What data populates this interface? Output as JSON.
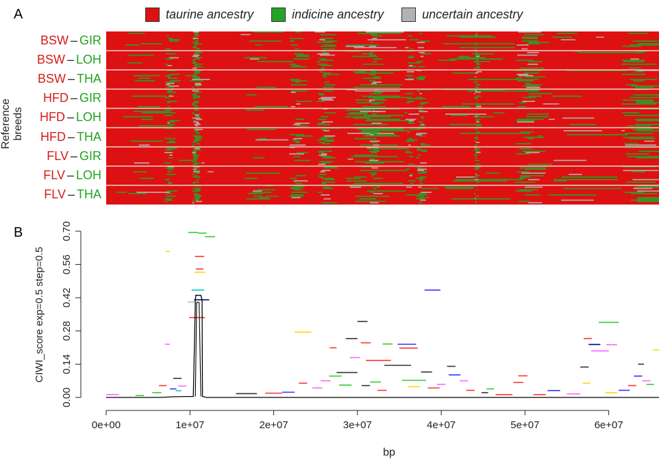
{
  "panel_a": {
    "letter": "A",
    "legend": [
      {
        "label": "taurine ancestry",
        "color": "#dd1111"
      },
      {
        "label": "indicine ancestry",
        "color": "#26a326"
      },
      {
        "label": "uncertain ancestry",
        "color": "#b3b3b3"
      }
    ],
    "ylabel": "Reference breeds",
    "rows": [
      {
        "a": "BSW",
        "dash": "–",
        "b": "GIR"
      },
      {
        "a": "BSW",
        "dash": "–",
        "b": "LOH"
      },
      {
        "a": "BSW",
        "dash": "–",
        "b": "THA"
      },
      {
        "a": "HFD",
        "dash": "–",
        "b": "GIR"
      },
      {
        "a": "HFD",
        "dash": "–",
        "b": "LOH"
      },
      {
        "a": "HFD",
        "dash": "–",
        "b": "THA"
      },
      {
        "a": "FLV",
        "dash": "–",
        "b": "GIR"
      },
      {
        "a": "FLV",
        "dash": "–",
        "b": "LOH"
      },
      {
        "a": "FLV",
        "dash": "–",
        "b": "THA"
      }
    ],
    "colors": {
      "taurine": "#dd1111",
      "indicine": "#26a326",
      "uncertain": "#b3b3b3",
      "separator": "#f2c8c8"
    }
  },
  "chart_data": {
    "type": "line",
    "panel_letter": "B",
    "xlabel": "bp",
    "ylabel": "CIWI_score exp=0.5 step=0.5",
    "xlim": [
      0,
      66000000
    ],
    "ylim": [
      0,
      0.7
    ],
    "x_ticks": [
      {
        "value": 0,
        "label": "0e+00"
      },
      {
        "value": 10000000,
        "label": "1e+07"
      },
      {
        "value": 20000000,
        "label": "2e+07"
      },
      {
        "value": 30000000,
        "label": "3e+07"
      },
      {
        "value": 40000000,
        "label": "4e+07"
      },
      {
        "value": 50000000,
        "label": "5e+07"
      },
      {
        "value": 60000000,
        "label": "6e+07"
      }
    ],
    "y_ticks": [
      {
        "value": 0,
        "label": "0.00"
      },
      {
        "value": 0.14,
        "label": "0.14"
      },
      {
        "value": 0.28,
        "label": "0.28"
      },
      {
        "value": 0.42,
        "label": "0.42"
      },
      {
        "value": 0.56,
        "label": "0.56"
      },
      {
        "value": 0.7,
        "label": "0.70"
      }
    ],
    "main_line": {
      "color": "#000000",
      "x": [
        0,
        6500000,
        8000000,
        9500000,
        10400000,
        10650000,
        10700000,
        11300000,
        11450000,
        11500000,
        12000000,
        16000000,
        20000000,
        24000000,
        28000000,
        32000000,
        36000000,
        40000000,
        44000000,
        48000000,
        52000000,
        56000000,
        60000000,
        64000000,
        66000000
      ],
      "y": [
        0,
        0,
        0.003,
        0.004,
        0.004,
        0.41,
        0.43,
        0.43,
        0.41,
        0.004,
        0,
        0,
        0,
        0,
        0,
        0,
        0,
        0,
        0,
        0,
        0,
        0,
        0,
        0,
        0
      ],
      "inner": {
        "x": [
          10650000,
          10800000,
          11100000,
          11300000
        ],
        "y": [
          0.004,
          0.4,
          0.4,
          0.004
        ]
      }
    },
    "segments": [
      {
        "x0": 9800000,
        "x1": 11000000,
        "y": 0.695,
        "color": "#33cc33"
      },
      {
        "x0": 11000000,
        "x1": 12000000,
        "y": 0.692,
        "color": "#33cc33"
      },
      {
        "x0": 11800000,
        "x1": 13000000,
        "y": 0.677,
        "color": "#33cc33"
      },
      {
        "x0": 7100000,
        "x1": 7600000,
        "y": 0.615,
        "color": "#ffd700"
      },
      {
        "x0": 10600000,
        "x1": 11700000,
        "y": 0.594,
        "color": "#ff3333"
      },
      {
        "x0": 10700000,
        "x1": 11600000,
        "y": 0.541,
        "color": "#ff3333"
      },
      {
        "x0": 10500000,
        "x1": 11800000,
        "y": 0.527,
        "color": "#ffd700"
      },
      {
        "x0": 10200000,
        "x1": 11700000,
        "y": 0.452,
        "color": "#00cccc"
      },
      {
        "x0": 10500000,
        "x1": 12300000,
        "y": 0.411,
        "color": "#000080"
      },
      {
        "x0": 9700000,
        "x1": 10700000,
        "y": 0.402,
        "color": "#bbbbbb"
      },
      {
        "x0": 9900000,
        "x1": 11800000,
        "y": 0.336,
        "color": "#ff3333"
      },
      {
        "x0": 7000000,
        "x1": 7600000,
        "y": 0.224,
        "color": "#ff66ff"
      },
      {
        "x0": 22500000,
        "x1": 24500000,
        "y": 0.275,
        "color": "#ffd700"
      },
      {
        "x0": 30000000,
        "x1": 31200000,
        "y": 0.32,
        "color": "#333333"
      },
      {
        "x0": 28600000,
        "x1": 30000000,
        "y": 0.248,
        "color": "#333333"
      },
      {
        "x0": 30400000,
        "x1": 31600000,
        "y": 0.23,
        "color": "#ff3333"
      },
      {
        "x0": 26700000,
        "x1": 27500000,
        "y": 0.209,
        "color": "#ff3333"
      },
      {
        "x0": 29100000,
        "x1": 30300000,
        "y": 0.168,
        "color": "#ff66ff"
      },
      {
        "x0": 31000000,
        "x1": 34000000,
        "y": 0.156,
        "color": "#ff3333"
      },
      {
        "x0": 34800000,
        "x1": 37000000,
        "y": 0.224,
        "color": "#3333ff"
      },
      {
        "x0": 33000000,
        "x1": 34200000,
        "y": 0.225,
        "color": "#33cc33"
      },
      {
        "x0": 35000000,
        "x1": 37200000,
        "y": 0.208,
        "color": "#ff3333"
      },
      {
        "x0": 38000000,
        "x1": 39900000,
        "y": 0.452,
        "color": "#3333ff"
      },
      {
        "x0": 33200000,
        "x1": 36400000,
        "y": 0.135,
        "color": "#333333"
      },
      {
        "x0": 27500000,
        "x1": 30000000,
        "y": 0.105,
        "color": "#333333"
      },
      {
        "x0": 26600000,
        "x1": 28100000,
        "y": 0.09,
        "color": "#33cc33"
      },
      {
        "x0": 35300000,
        "x1": 38200000,
        "y": 0.072,
        "color": "#33cc33"
      },
      {
        "x0": 37600000,
        "x1": 38900000,
        "y": 0.107,
        "color": "#333333"
      },
      {
        "x0": 40700000,
        "x1": 41700000,
        "y": 0.131,
        "color": "#333333"
      },
      {
        "x0": 40900000,
        "x1": 42300000,
        "y": 0.095,
        "color": "#3333ff"
      },
      {
        "x0": 49200000,
        "x1": 50300000,
        "y": 0.091,
        "color": "#ff3333"
      },
      {
        "x0": 48600000,
        "x1": 49800000,
        "y": 0.063,
        "color": "#ff3333"
      },
      {
        "x0": 52700000,
        "x1": 54200000,
        "y": 0.029,
        "color": "#3333ff"
      },
      {
        "x0": 45400000,
        "x1": 46300000,
        "y": 0.036,
        "color": "#33cc33"
      },
      {
        "x0": 57000000,
        "x1": 58000000,
        "y": 0.248,
        "color": "#ff3333"
      },
      {
        "x0": 57600000,
        "x1": 59000000,
        "y": 0.223,
        "color": "#000080"
      },
      {
        "x0": 57900000,
        "x1": 60000000,
        "y": 0.196,
        "color": "#ff66ff"
      },
      {
        "x0": 58800000,
        "x1": 61200000,
        "y": 0.316,
        "color": "#33cc33"
      },
      {
        "x0": 59700000,
        "x1": 61000000,
        "y": 0.222,
        "color": "#ff66ff"
      },
      {
        "x0": 56600000,
        "x1": 57600000,
        "y": 0.128,
        "color": "#333333"
      },
      {
        "x0": 56900000,
        "x1": 57800000,
        "y": 0.06,
        "color": "#ffd700"
      },
      {
        "x0": 63500000,
        "x1": 64200000,
        "y": 0.14,
        "color": "#333333"
      },
      {
        "x0": 65300000,
        "x1": 66000000,
        "y": 0.2,
        "color": "#ffd700"
      },
      {
        "x0": 63000000,
        "x1": 64000000,
        "y": 0.09,
        "color": "#3333ff"
      },
      {
        "x0": 64000000,
        "x1": 65000000,
        "y": 0.07,
        "color": "#ff66ff"
      },
      {
        "x0": 64500000,
        "x1": 65400000,
        "y": 0.055,
        "color": "#33cc33"
      },
      {
        "x0": 8000000,
        "x1": 9000000,
        "y": 0.08,
        "color": "#333333"
      },
      {
        "x0": 8600000,
        "x1": 9600000,
        "y": 0.048,
        "color": "#ff66ff"
      },
      {
        "x0": 8300000,
        "x1": 9000000,
        "y": 0.028,
        "color": "#00cccc"
      },
      {
        "x0": 7600000,
        "x1": 8400000,
        "y": 0.036,
        "color": "#3333ff"
      },
      {
        "x0": 0,
        "x1": 1500000,
        "y": 0.012,
        "color": "#ff66ff"
      },
      {
        "x0": 15500000,
        "x1": 18000000,
        "y": 0.016,
        "color": "#333333"
      },
      {
        "x0": 19000000,
        "x1": 21000000,
        "y": 0.018,
        "color": "#ff3333"
      },
      {
        "x0": 21000000,
        "x1": 22500000,
        "y": 0.022,
        "color": "#3333ff"
      },
      {
        "x0": 23000000,
        "x1": 24000000,
        "y": 0.06,
        "color": "#ff3333"
      },
      {
        "x0": 24600000,
        "x1": 25800000,
        "y": 0.04,
        "color": "#ff66ff"
      },
      {
        "x0": 25600000,
        "x1": 26800000,
        "y": 0.07,
        "color": "#ff66ff"
      },
      {
        "x0": 27800000,
        "x1": 29300000,
        "y": 0.052,
        "color": "#33cc33"
      },
      {
        "x0": 30500000,
        "x1": 31500000,
        "y": 0.05,
        "color": "#333333"
      },
      {
        "x0": 31500000,
        "x1": 32800000,
        "y": 0.065,
        "color": "#33cc33"
      },
      {
        "x0": 32400000,
        "x1": 33500000,
        "y": 0.03,
        "color": "#ff3333"
      },
      {
        "x0": 36000000,
        "x1": 37500000,
        "y": 0.045,
        "color": "#ffd700"
      },
      {
        "x0": 38400000,
        "x1": 39800000,
        "y": 0.04,
        "color": "#ff3333"
      },
      {
        "x0": 39500000,
        "x1": 40500000,
        "y": 0.055,
        "color": "#ff66ff"
      },
      {
        "x0": 42200000,
        "x1": 43200000,
        "y": 0.07,
        "color": "#ff66ff"
      },
      {
        "x0": 43000000,
        "x1": 44000000,
        "y": 0.03,
        "color": "#ff3333"
      },
      {
        "x0": 44800000,
        "x1": 45600000,
        "y": 0.02,
        "color": "#333333"
      },
      {
        "x0": 46500000,
        "x1": 48500000,
        "y": 0.012,
        "color": "#ff3333"
      },
      {
        "x0": 51000000,
        "x1": 52500000,
        "y": 0.012,
        "color": "#ff3333"
      },
      {
        "x0": 55000000,
        "x1": 56600000,
        "y": 0.015,
        "color": "#ff66ff"
      },
      {
        "x0": 59600000,
        "x1": 61000000,
        "y": 0.02,
        "color": "#ffd700"
      },
      {
        "x0": 61200000,
        "x1": 62500000,
        "y": 0.03,
        "color": "#3333ff"
      },
      {
        "x0": 62300000,
        "x1": 63300000,
        "y": 0.05,
        "color": "#ff3333"
      },
      {
        "x0": 5500000,
        "x1": 6600000,
        "y": 0.02,
        "color": "#33cc33"
      },
      {
        "x0": 6300000,
        "x1": 7200000,
        "y": 0.05,
        "color": "#ff3333"
      },
      {
        "x0": 3500000,
        "x1": 4500000,
        "y": 0.008,
        "color": "#33cc33"
      }
    ]
  }
}
